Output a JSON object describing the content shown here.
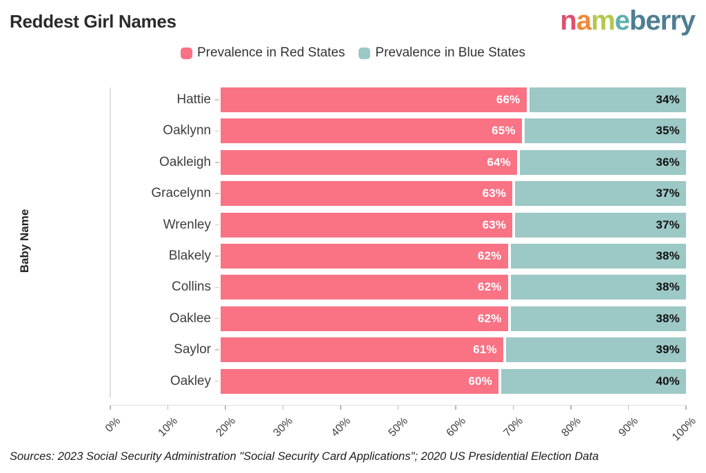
{
  "title": "Reddest Girl Names",
  "logo": {
    "text": "nameberry",
    "letters": [
      {
        "ch": "n",
        "color": "#DE4F6E"
      },
      {
        "ch": "a",
        "color": "#F08A38"
      },
      {
        "ch": "m",
        "color": "#B2C84F"
      },
      {
        "ch": "e",
        "color": "#5FAFAF"
      },
      {
        "ch": "b",
        "color": "#4E7E91"
      },
      {
        "ch": "e",
        "color": "#4E7E91"
      },
      {
        "ch": "r",
        "color": "#4E7E91"
      },
      {
        "ch": "r",
        "color": "#4E7E91"
      },
      {
        "ch": "y",
        "color": "#4E7E91"
      }
    ]
  },
  "chart_data": {
    "type": "bar",
    "orientation": "horizontal",
    "stacked": true,
    "title": "Reddest Girl Names",
    "ylabel": "Baby Name",
    "xlabel": "",
    "xlim": [
      0,
      100
    ],
    "x_tick_labels": [
      "0%",
      "10%",
      "20%",
      "30%",
      "40%",
      "50%",
      "60%",
      "70%",
      "80%",
      "90%",
      "100%"
    ],
    "grid": false,
    "legend_position": "top-center",
    "categories": [
      "Hattie",
      "Oaklynn",
      "Oakleigh",
      "Gracelynn",
      "Wrenley",
      "Blakely",
      "Collins",
      "Oaklee",
      "Saylor",
      "Oakley"
    ],
    "series": [
      {
        "name": "Prevalence in Red States",
        "color": "#F97385",
        "label_color": "#ffffff",
        "values": [
          66,
          65,
          64,
          63,
          63,
          62,
          62,
          62,
          61,
          60
        ]
      },
      {
        "name": "Prevalence in Blue States",
        "color": "#9CC8C5",
        "label_color": "#101010",
        "values": [
          34,
          35,
          36,
          37,
          37,
          38,
          38,
          38,
          39,
          40
        ]
      }
    ],
    "value_suffix": "%"
  },
  "source": "Sources: 2023 Social Security Administration \"Social Security Card Applications\"; 2020 US Presidential Election Data"
}
